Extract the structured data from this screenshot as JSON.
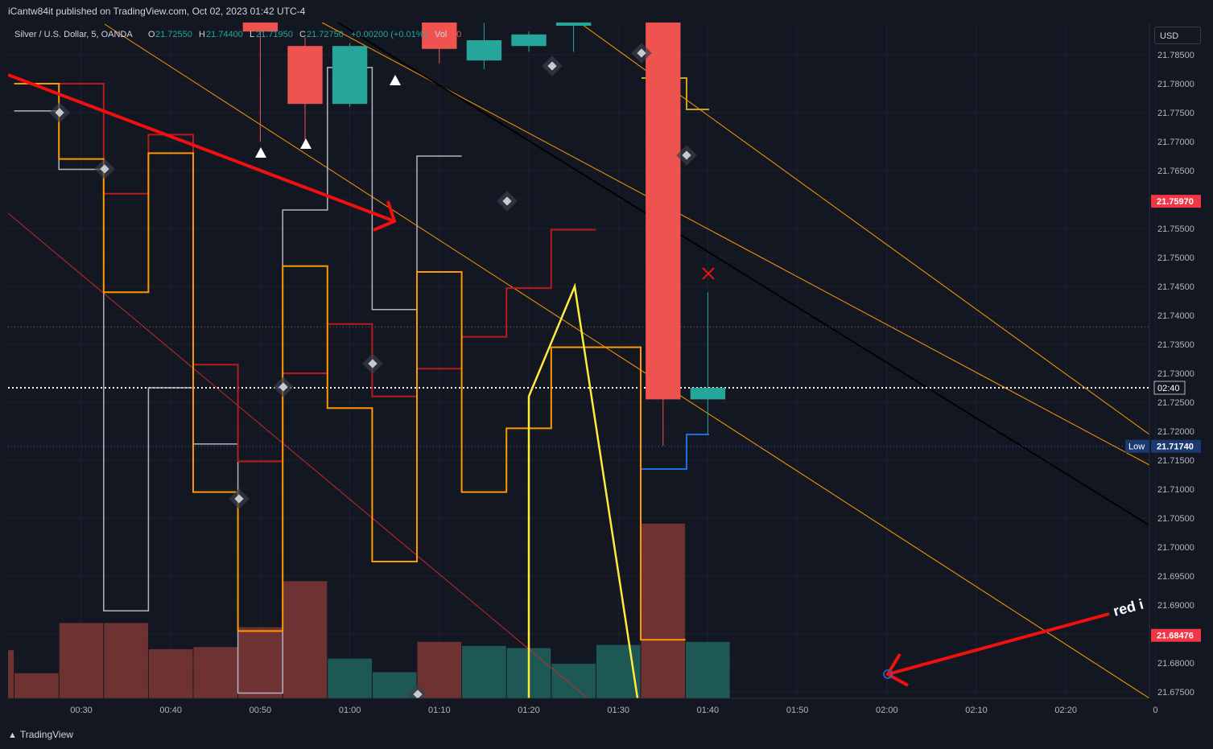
{
  "header": {
    "publisher": "iCantw84it published on TradingView.com, Oct 02, 2023 01:42 UTC-4"
  },
  "legend": {
    "symbol": "Silver / U.S. Dollar, 5, OANDA",
    "open_label": "O",
    "open": "21.72550",
    "high_label": "H",
    "high": "21.74400",
    "low_label": "L",
    "low": "21.71950",
    "close_label": "C",
    "close": "21.72750",
    "change": "+0.00200 (+0.01%)",
    "vol_label": "Vol",
    "vol": "90"
  },
  "currency": "USD",
  "footer": {
    "brand": "TradingView"
  },
  "annotation": {
    "text": "red i"
  },
  "colors": {
    "bg": "#131722",
    "up": "#26a69a",
    "down": "#ef5350",
    "vol_up": "#1f5f5a",
    "vol_down": "#7a3535",
    "orange": "#ff9800",
    "darkred": "#b71c1c",
    "silver": "#b2b5be",
    "yellow": "#ffeb3b",
    "blue": "#1e6fd9",
    "gold": "#c9a227"
  },
  "chart_data": {
    "type": "candlestick",
    "x_ticks": [
      "00:30",
      "00:40",
      "00:50",
      "01:00",
      "01:10",
      "01:20",
      "01:30",
      "01:40",
      "01:50",
      "02:00",
      "02:10",
      "02:20",
      "0"
    ],
    "y_ticks": [
      "21.78500",
      "21.78000",
      "21.77500",
      "21.77000",
      "21.76500",
      "21.76000",
      "21.75500",
      "21.75000",
      "21.74500",
      "21.74000",
      "21.73500",
      "21.73000",
      "21.72500",
      "21.72000",
      "21.71500",
      "21.71000",
      "21.70500",
      "21.70000",
      "21.69500",
      "21.69000",
      "21.68500",
      "21.68000",
      "21.67500"
    ],
    "ylim": [
      21.674,
      21.7915
    ],
    "price_labels": [
      {
        "text": "21.75970",
        "value": 21.7597,
        "bg": "#f23645"
      },
      {
        "text": "02:40",
        "value": 21.7275,
        "bg": "#131722"
      },
      {
        "text": "21.71740",
        "value": 21.7174,
        "bg": "#1c3a72",
        "tag": "Low"
      },
      {
        "text": "21.68476",
        "value": 21.68476,
        "bg": "#f23645"
      }
    ],
    "candles": [
      {
        "t": "00:50",
        "o": 21.791,
        "h": 21.7915,
        "c": 21.789,
        "l": 21.77
      },
      {
        "t": "00:55",
        "o": 21.7865,
        "h": 21.788,
        "c": 21.7765,
        "l": 21.7695
      },
      {
        "t": "01:00",
        "o": 21.7765,
        "h": 21.787,
        "c": 21.7865,
        "l": 21.776
      },
      {
        "t": "01:10",
        "o": 21.791,
        "h": 21.7915,
        "c": 21.786,
        "l": 21.7835
      },
      {
        "t": "01:15",
        "o": 21.784,
        "h": 21.7905,
        "c": 21.7875,
        "l": 21.7825
      },
      {
        "t": "01:20",
        "o": 21.7865,
        "h": 21.789,
        "c": 21.7885,
        "l": 21.7855
      },
      {
        "t": "01:25",
        "o": 21.79,
        "h": 21.7915,
        "c": 21.791,
        "l": 21.7855
      },
      {
        "t": "01:35",
        "o": 21.7915,
        "h": 21.7915,
        "c": 21.7255,
        "l": 21.7175
      },
      {
        "t": "01:40",
        "o": 21.7255,
        "h": 21.744,
        "c": 21.7275,
        "l": 21.7195
      }
    ],
    "volume_bars": [
      {
        "t": "00:20",
        "h": 0.46,
        "dir": "down"
      },
      {
        "t": "00:25",
        "h": 0.24,
        "dir": "down"
      },
      {
        "t": "00:30",
        "h": 0.72,
        "dir": "down"
      },
      {
        "t": "00:35",
        "h": 0.72,
        "dir": "down"
      },
      {
        "t": "00:40",
        "h": 0.47,
        "dir": "down"
      },
      {
        "t": "00:45",
        "h": 0.49,
        "dir": "down"
      },
      {
        "t": "00:50",
        "h": 0.68,
        "dir": "down"
      },
      {
        "t": "00:55",
        "h": 1.12,
        "dir": "down"
      },
      {
        "t": "01:00",
        "h": 0.38,
        "dir": "up"
      },
      {
        "t": "01:05",
        "h": 0.25,
        "dir": "up"
      },
      {
        "t": "01:10",
        "h": 0.54,
        "dir": "down"
      },
      {
        "t": "01:15",
        "h": 0.5,
        "dir": "up"
      },
      {
        "t": "01:20",
        "h": 0.48,
        "dir": "up"
      },
      {
        "t": "01:25",
        "h": 0.33,
        "dir": "up"
      },
      {
        "t": "01:30",
        "h": 0.51,
        "dir": "up"
      },
      {
        "t": "01:35",
        "h": 1.67,
        "dir": "down"
      },
      {
        "t": "01:40",
        "h": 0.54,
        "dir": "up"
      }
    ],
    "orange_steps": [
      [
        21.78,
        21.767,
        21.744,
        21.768,
        21.7095,
        21.6855,
        21.7485,
        21.724,
        21.6975,
        21.7475,
        21.7095,
        21.7205,
        21.7345,
        21.7345,
        21.684
      ]
    ],
    "silver_steps": [
      21.7753,
      21.7652,
      21.689,
      21.7275,
      21.7178,
      21.6748,
      21.7582,
      21.7828,
      21.741,
      21.7675
    ],
    "darkred_steps": [
      21.78,
      21.761,
      21.7712,
      21.7315,
      21.7148,
      21.73,
      21.7385,
      21.726,
      21.7308,
      21.7363,
      21.7447,
      21.7548
    ],
    "yellow_zigzag": [
      [
        21.726,
        21.745
      ],
      [
        21.745,
        21.6755
      ]
    ],
    "markers": [
      "triangle-up",
      "triangle-up",
      "triangle-up",
      "diamond",
      "cross-x"
    ],
    "grid": true
  }
}
